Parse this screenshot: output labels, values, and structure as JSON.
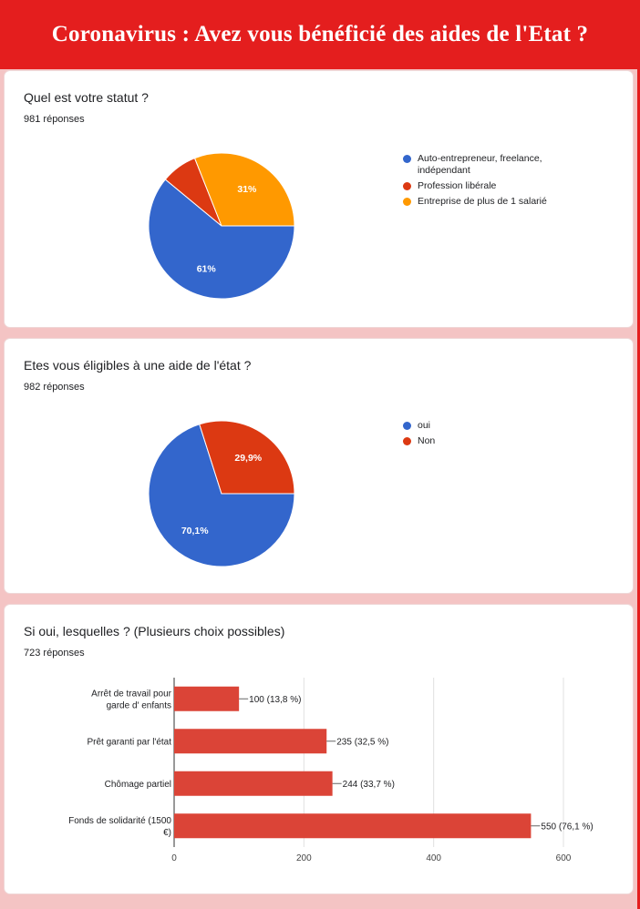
{
  "header": {
    "title": "Coronavirus : Avez vous bénéficié des aides de l'Etat ?"
  },
  "colors": {
    "banner": "#e41e1e",
    "blue": "#3366cc",
    "red": "#dc3912",
    "orange": "#ff9900",
    "bar": "#db4437"
  },
  "chart_data": [
    {
      "type": "pie",
      "title": "Quel est votre statut ?",
      "subtitle": "981 réponses",
      "categories": [
        "Auto-entrepreneur, freelance, indépendant",
        "Profession libérale",
        "Entreprise de plus de 1 salarié"
      ],
      "values": [
        61,
        8,
        31
      ],
      "labels": [
        "61%",
        "",
        "31%"
      ],
      "colors": [
        "#3366cc",
        "#dc3912",
        "#ff9900"
      ],
      "legend": "right"
    },
    {
      "type": "pie",
      "title": "Etes vous éligibles à une aide de l'état ?",
      "subtitle": "982 réponses",
      "categories": [
        "oui",
        "Non"
      ],
      "values": [
        70.1,
        29.9
      ],
      "labels": [
        "70,1%",
        "29,9%"
      ],
      "colors": [
        "#3366cc",
        "#dc3912"
      ],
      "legend": "right"
    },
    {
      "type": "bar",
      "orientation": "horizontal",
      "title": "Si oui, lesquelles ? (Plusieurs choix possibles)",
      "subtitle": "723 réponses",
      "categories": [
        "Arrêt de travail pour garde d' enfants",
        "Prêt garanti par l'état",
        "Chômage partiel",
        "Fonds de solidarité (1500 €)"
      ],
      "values": [
        100,
        235,
        244,
        550
      ],
      "value_labels": [
        "100 (13,8 %)",
        "235 (32,5 %)",
        "244 (33,7 %)",
        "550 (76,1 %)"
      ],
      "xlim": [
        0,
        600
      ],
      "xticks": [
        "0",
        "200",
        "400",
        "600"
      ],
      "color": "#db4437",
      "grid": true
    }
  ]
}
